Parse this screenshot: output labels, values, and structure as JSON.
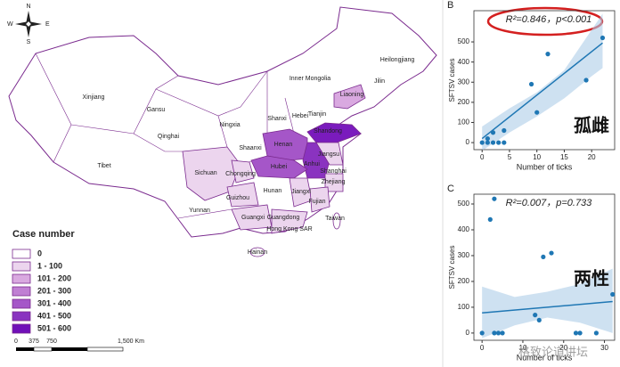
{
  "map": {
    "compass": [
      "N",
      "E",
      "S",
      "W"
    ],
    "provinces": [
      {
        "name": "Xinjiang",
        "color": "#ffffff"
      },
      {
        "name": "Tibet",
        "color": "#ffffff"
      },
      {
        "name": "Qinghai",
        "color": "#ffffff"
      },
      {
        "name": "Gansu",
        "color": "#ffffff"
      },
      {
        "name": "Inner Mongolia",
        "color": "#ffffff"
      },
      {
        "name": "Heilongjiang",
        "color": "#ffffff"
      },
      {
        "name": "Jilin",
        "color": "#ffffff"
      },
      {
        "name": "Liaoning",
        "color": "#d9a9e0"
      },
      {
        "name": "Ningxia",
        "color": "#ffffff"
      },
      {
        "name": "Shaanxi",
        "color": "#ffffff"
      },
      {
        "name": "Shanxi",
        "color": "#ffffff"
      },
      {
        "name": "Hebei",
        "color": "#ffffff"
      },
      {
        "name": "Tianjin",
        "color": "#ffffff"
      },
      {
        "name": "Shandong",
        "color": "#7a1bbd"
      },
      {
        "name": "Henan",
        "color": "#a556c8"
      },
      {
        "name": "Hubei",
        "color": "#a556c8"
      },
      {
        "name": "Anhui",
        "color": "#8a33c0"
      },
      {
        "name": "Jiangsu",
        "color": "#ecd5ee"
      },
      {
        "name": "Shanghai",
        "color": "#ffffff"
      },
      {
        "name": "Zhejiang",
        "color": "#ecd5ee"
      },
      {
        "name": "Chongqing",
        "color": "#ecd5ee"
      },
      {
        "name": "Sichuan",
        "color": "#ecd5ee"
      },
      {
        "name": "Guizhou",
        "color": "#ecd5ee"
      },
      {
        "name": "Yunnan",
        "color": "#ffffff"
      },
      {
        "name": "Hunan",
        "color": "#ffffff"
      },
      {
        "name": "Jiangxi",
        "color": "#ecd5ee"
      },
      {
        "name": "Fujian",
        "color": "#ecd5ee"
      },
      {
        "name": "Guangxi",
        "color": "#ecd5ee"
      },
      {
        "name": "Guangdong",
        "color": "#ecd5ee"
      },
      {
        "name": "Hong Kong SAR",
        "color": "#ffffff"
      },
      {
        "name": "Taiwan",
        "color": "#ffffff"
      },
      {
        "name": "Hainan",
        "color": "#ffffff"
      }
    ],
    "legend": {
      "title": "Case number",
      "items": [
        {
          "label": "0",
          "color": "#ffffff"
        },
        {
          "label": "1 - 100",
          "color": "#ecd5ee"
        },
        {
          "label": "101 - 200",
          "color": "#d9a9e0"
        },
        {
          "label": "201 - 300",
          "color": "#c07fd3"
        },
        {
          "label": "301 - 400",
          "color": "#a556c8"
        },
        {
          "label": "401 - 500",
          "color": "#8a33c0"
        },
        {
          "label": "501 - 600",
          "color": "#7010b8"
        }
      ]
    },
    "scale_bar": [
      "0",
      "375",
      "750",
      "1,500 Km"
    ]
  },
  "chart_data": [
    {
      "type": "scatter",
      "panel": "B",
      "annotation": "R²=0.846，p<0.001",
      "label": "孤雌",
      "xlabel": "Number of ticks",
      "ylabel": "SFTSV cases",
      "color": "#1f77b4",
      "x": [
        0,
        1,
        1,
        2,
        2,
        3,
        4,
        4,
        9,
        10,
        12,
        19,
        22
      ],
      "values": [
        0,
        0,
        20,
        50,
        0,
        0,
        0,
        60,
        290,
        150,
        440,
        310,
        520
      ],
      "fit_x": [
        0,
        22
      ],
      "fit_y": [
        20,
        495
      ],
      "band_x": [
        0,
        5,
        10,
        15,
        20,
        22
      ],
      "band_low": [
        -40,
        50,
        130,
        220,
        330,
        370
      ],
      "band_high": [
        80,
        170,
        250,
        360,
        560,
        640
      ],
      "xlim": [
        -1.5,
        24.2
      ],
      "ylim": [
        -35,
        655
      ],
      "xticks": [
        0,
        5,
        10,
        15,
        20
      ],
      "yticks": [
        0,
        100,
        200,
        300,
        400,
        500
      ]
    },
    {
      "type": "scatter",
      "panel": "C",
      "annotation": "R²=0.007，p=0.733",
      "label": "两性",
      "xlabel": "Number of ticks",
      "ylabel": "SFTSV cases",
      "color": "#1f77b4",
      "x": [
        0,
        2,
        3,
        3,
        4,
        5,
        13,
        14,
        15,
        17,
        23,
        24,
        28,
        32
      ],
      "values": [
        0,
        440,
        520,
        0,
        0,
        0,
        70,
        50,
        295,
        310,
        0,
        0,
        0,
        150
      ],
      "fit_x": [
        0,
        32
      ],
      "fit_y": [
        78,
        122
      ],
      "band_x": [
        0,
        8,
        16,
        24,
        32
      ],
      "band_low": [
        -20,
        30,
        60,
        40,
        0
      ],
      "band_high": [
        180,
        140,
        160,
        190,
        250
      ],
      "xlim": [
        -2,
        32.5
      ],
      "ylim": [
        -28,
        538
      ],
      "xticks": [
        0,
        10,
        20,
        30
      ],
      "yticks": [
        0,
        100,
        200,
        300,
        400,
        500
      ]
    }
  ],
  "watermark": "格致论道讲坛"
}
